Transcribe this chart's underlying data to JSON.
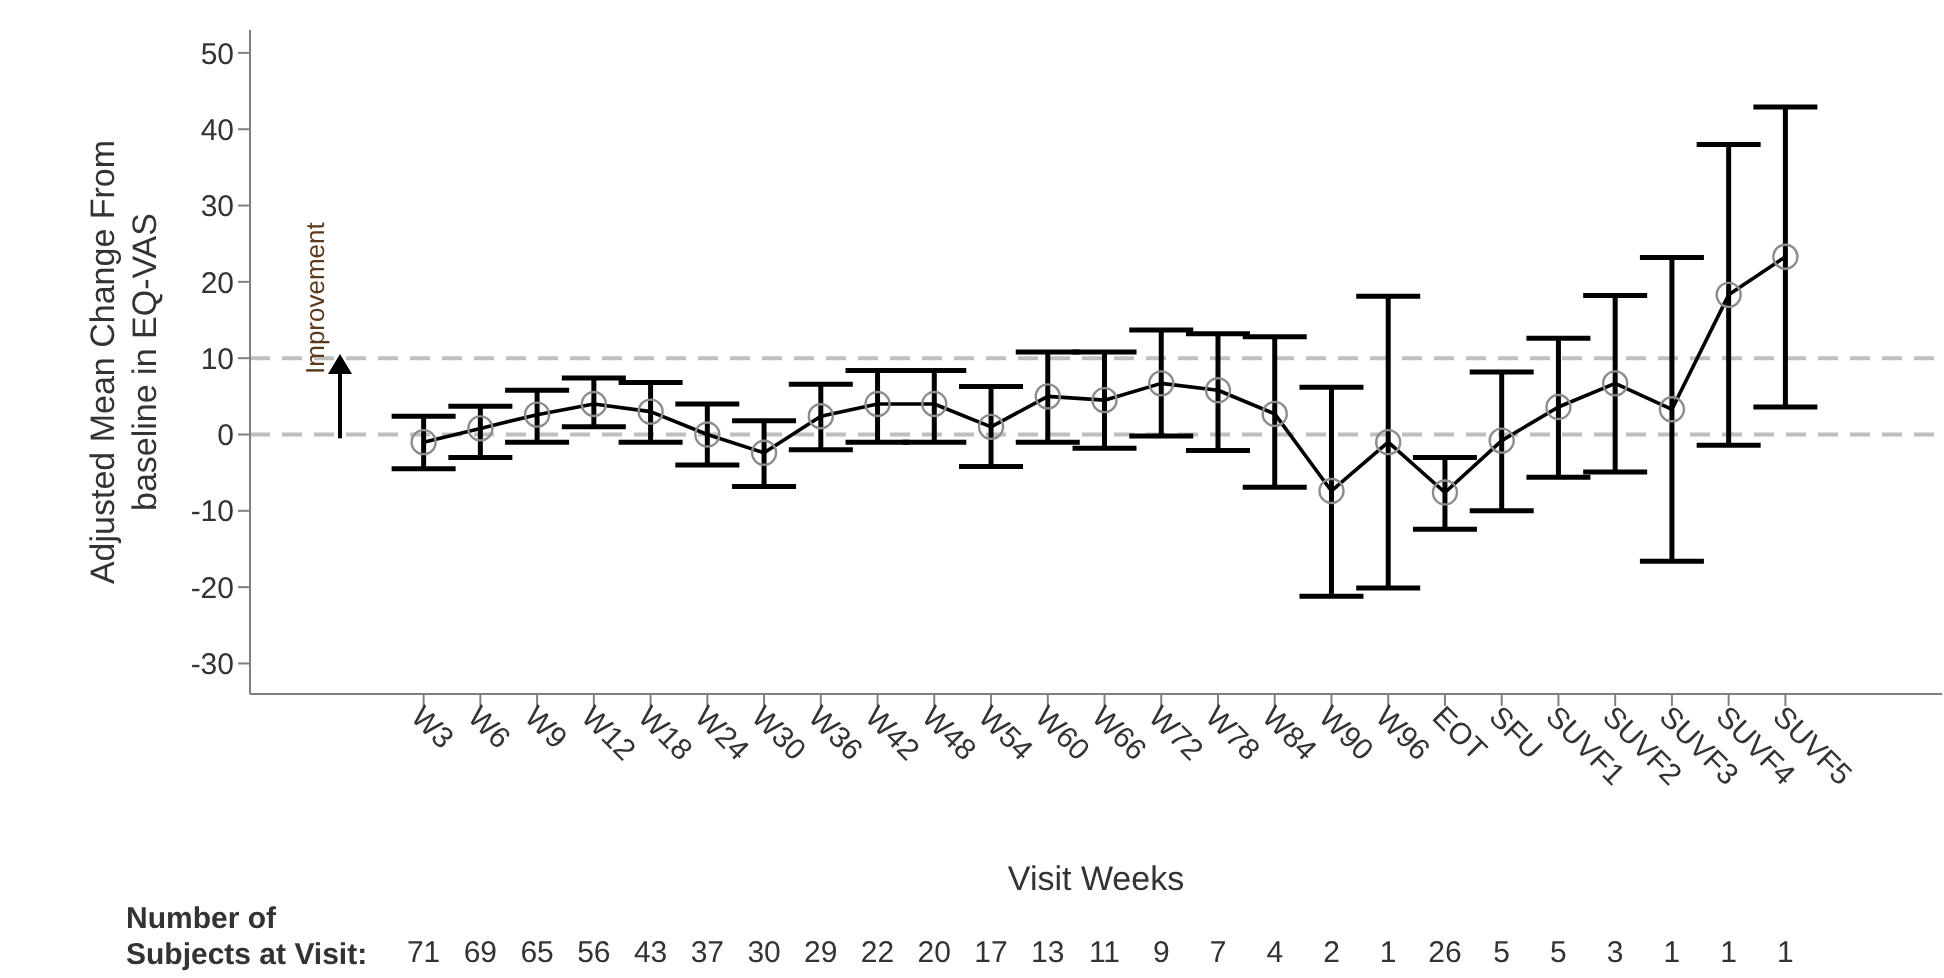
{
  "chart_data": {
    "type": "line",
    "ylabel": "Adjusted Mean Change From\nbaseline in EQ-VAS",
    "xlabel": "Visit Weeks",
    "categories": [
      "W3",
      "W6",
      "W9",
      "W12",
      "W18",
      "W24",
      "W30",
      "W36",
      "W42",
      "W48",
      "W54",
      "W60",
      "W66",
      "W72",
      "W78",
      "W84",
      "W90",
      "W96",
      "EOT",
      "SFU",
      "SUVF1",
      "SUVF2",
      "SUVF3",
      "SUVF4",
      "SUVF5"
    ],
    "series": [
      {
        "color": "#000000",
        "values": [
          -1,
          0.8,
          2.6,
          4,
          3,
          0,
          -2.4,
          2.4,
          4,
          4,
          1,
          5,
          4.5,
          6.7,
          5.8,
          2.7,
          -7.4,
          -1,
          -7.6,
          -0.8,
          3.6,
          6.7,
          3.3,
          18.3,
          23.3
        ],
        "errors": [
          [
            -4.5,
            2.4
          ],
          [
            -3,
            3.7
          ],
          [
            -1,
            5.8
          ],
          [
            1,
            7.4
          ],
          [
            -1,
            6.8
          ],
          [
            -4,
            4
          ],
          [
            -6.8,
            1.8
          ],
          [
            -2,
            6.6
          ],
          [
            -1,
            8.4
          ],
          [
            -1,
            8.4
          ],
          [
            -4.2,
            6.3
          ],
          [
            -1,
            10.8
          ],
          [
            -1.8,
            10.8
          ],
          [
            -0.2,
            13.7
          ],
          [
            -2.1,
            13.2
          ],
          [
            -6.9,
            12.8
          ],
          [
            -21.2,
            6.2
          ],
          [
            -20.1,
            18.1
          ],
          [
            -12.4,
            -3
          ],
          [
            -10,
            8.2
          ],
          [
            -5.6,
            12.6
          ],
          [
            -4.9,
            18.2
          ],
          [
            -16.6,
            23.2
          ],
          [
            -1.4,
            38
          ],
          [
            3.6,
            42.9
          ]
        ]
      }
    ],
    "marker": "circle",
    "ylim": [
      -34,
      53
    ],
    "yticks": [
      -30,
      -20,
      -10,
      0,
      10,
      20,
      30,
      40,
      50
    ],
    "ref_lines": [
      {
        "axis": "y",
        "value": 10,
        "color": "#bfbfbf",
        "line_style": "dashed"
      },
      {
        "axis": "y",
        "value": 0,
        "color": "#bfbfbf",
        "line_style": "dashed"
      }
    ],
    "annotations": [
      "Improvement",
      "Number of\nSubjects at Visit:",
      "71",
      "69",
      "65",
      "56",
      "43",
      "37",
      "30",
      "29",
      "22",
      "20",
      "17",
      "13",
      "11",
      "9",
      "7",
      "4",
      "2",
      "1",
      "26",
      "5",
      "5",
      "3",
      "1",
      "1",
      "1"
    ]
  }
}
